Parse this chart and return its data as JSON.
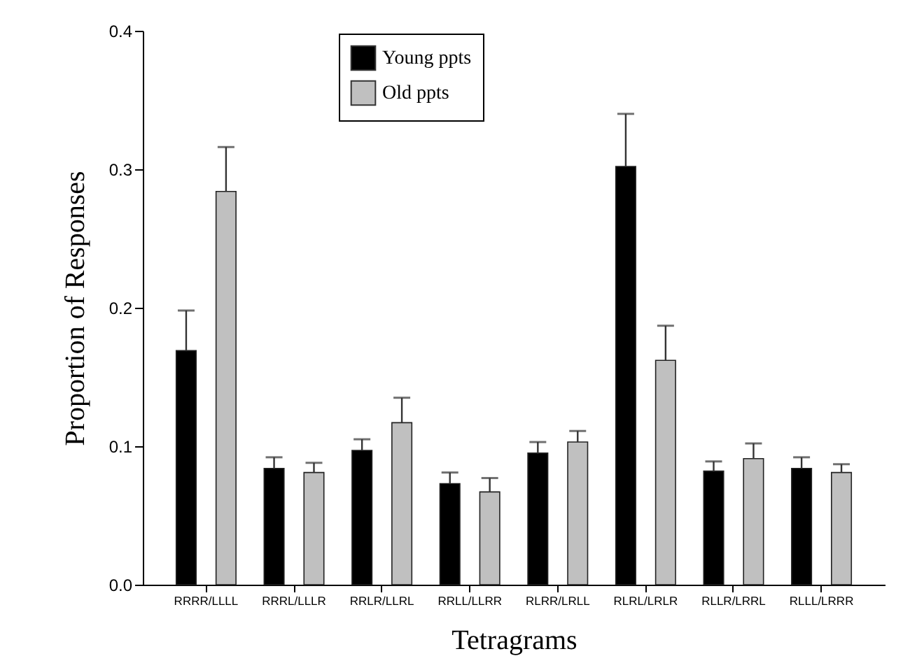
{
  "chart_data": {
    "type": "bar",
    "xlabel": "Tetragrams",
    "ylabel": "Proportion of Responses",
    "categories": [
      "RRRR/LLLL",
      "RRRL/LLLR",
      "RRLR/LLRL",
      "RRLL/LLRR",
      "RLRR/LRLL",
      "RLRL/LRLR",
      "RLLR/LRRL",
      "RLLL/LRRR"
    ],
    "series": [
      {
        "name": "Young ppts",
        "color": "#000000",
        "values": [
          0.169,
          0.084,
          0.097,
          0.073,
          0.095,
          0.302,
          0.082,
          0.084
        ],
        "errors": [
          [
            0.169,
            0.198
          ],
          [
            0.084,
            0.092
          ],
          [
            0.097,
            0.105
          ],
          [
            0.073,
            0.081
          ],
          [
            0.095,
            0.103
          ],
          [
            0.302,
            0.34
          ],
          [
            0.082,
            0.089
          ],
          [
            0.084,
            0.092
          ]
        ]
      },
      {
        "name": "Old ppts",
        "color": "#c0c0c0",
        "values": [
          0.284,
          0.081,
          0.117,
          0.067,
          0.103,
          0.162,
          0.091,
          0.081
        ],
        "errors": [
          [
            0.284,
            0.316
          ],
          [
            0.081,
            0.088
          ],
          [
            0.117,
            0.135
          ],
          [
            0.067,
            0.077
          ],
          [
            0.103,
            0.111
          ],
          [
            0.162,
            0.187
          ],
          [
            0.091,
            0.102
          ],
          [
            0.081,
            0.087
          ]
        ]
      }
    ],
    "ylim": [
      0,
      0.4
    ],
    "yticks": [
      {
        "value": 0,
        "label": "0.0"
      },
      0.1,
      0.2,
      0.3,
      0.4
    ],
    "legend": "top",
    "grid": false
  }
}
